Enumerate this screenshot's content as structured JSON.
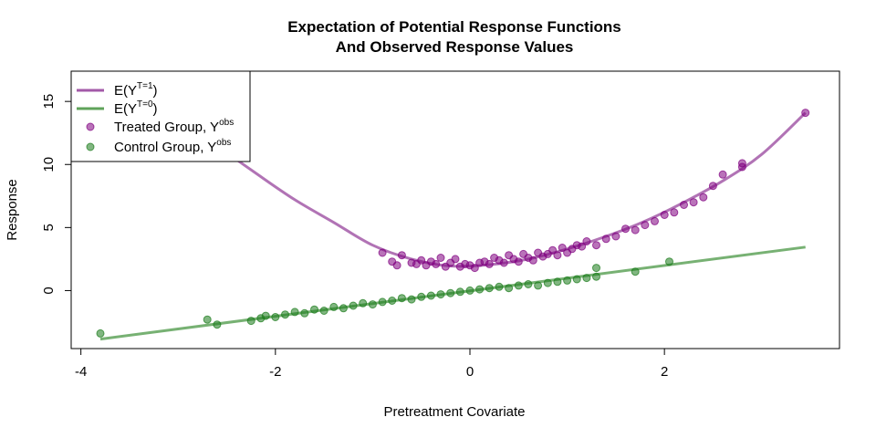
{
  "chart_data": {
    "type": "scatter",
    "title_line1": "Expectation of Potential Response Functions",
    "title_line2": "And Observed Response Values",
    "xlabel": "Pretreatment Covariate",
    "ylabel": "Response",
    "xlim": [
      -4.1,
      3.8
    ],
    "ylim": [
      -4.6,
      17.4
    ],
    "x_ticks": [
      -4,
      -2,
      0,
      2
    ],
    "y_ticks": [
      0,
      5,
      10,
      15
    ],
    "grid": false,
    "legend_position": "top-left",
    "legend": [
      {
        "type": "line",
        "label_base": "E(Y",
        "label_sup": "T=1",
        "label_end": ")",
        "color": "#a35aa8"
      },
      {
        "type": "line",
        "label_base": "E(Y",
        "label_sup": "T=0",
        "label_end": ")",
        "color": "#5fa35a"
      },
      {
        "type": "point",
        "label_base": "Treated Group, Y",
        "label_sup": "obs",
        "label_end": "",
        "color": "#800080"
      },
      {
        "type": "point",
        "label_base": "Control Group, Y",
        "label_sup": "obs",
        "label_end": "",
        "color": "#1a7a1a"
      }
    ],
    "curves": [
      {
        "name": "E(Y^T=1)",
        "color": "#a35aa8",
        "x_range": [
          -3.8,
          3.45
        ],
        "x": [
          -3.8,
          -3.4,
          -3.0,
          -2.6,
          -2.2,
          -1.8,
          -1.4,
          -1.0,
          -0.6,
          -0.2,
          0.2,
          0.6,
          1.0,
          1.4,
          1.8,
          2.2,
          2.6,
          3.0,
          3.45
        ],
        "y": [
          18.6,
          16.2,
          13.8,
          11.5,
          9.3,
          7.2,
          5.4,
          3.6,
          2.5,
          1.95,
          2.05,
          2.5,
          3.3,
          4.3,
          5.5,
          7.0,
          8.7,
          10.8,
          14.1
        ]
      },
      {
        "name": "E(Y^T=0)",
        "color": "#5fa35a",
        "x_range": [
          -3.8,
          3.45
        ],
        "x": [
          -3.8,
          3.45
        ],
        "y": [
          -3.85,
          3.45
        ]
      }
    ],
    "series": [
      {
        "name": "Treated Group, Y^obs",
        "color": "#800080",
        "x": [
          -0.9,
          -0.8,
          -0.75,
          -0.7,
          -0.6,
          -0.55,
          -0.5,
          -0.45,
          -0.4,
          -0.35,
          -0.3,
          -0.25,
          -0.2,
          -0.15,
          -0.1,
          -0.05,
          0.0,
          0.05,
          0.1,
          0.15,
          0.2,
          0.25,
          0.3,
          0.35,
          0.4,
          0.45,
          0.5,
          0.55,
          0.6,
          0.65,
          0.7,
          0.75,
          0.8,
          0.85,
          0.9,
          0.95,
          1.0,
          1.05,
          1.1,
          1.15,
          1.2,
          1.3,
          1.4,
          1.5,
          1.6,
          1.7,
          1.8,
          1.9,
          2.0,
          2.1,
          2.2,
          2.3,
          2.4,
          2.5,
          2.6,
          2.8,
          2.8,
          3.45
        ],
        "y": [
          3.0,
          2.3,
          2.0,
          2.8,
          2.2,
          2.1,
          2.4,
          2.0,
          2.3,
          2.1,
          2.6,
          1.9,
          2.2,
          2.5,
          1.9,
          2.1,
          2.0,
          1.8,
          2.2,
          2.3,
          2.1,
          2.6,
          2.4,
          2.2,
          2.8,
          2.5,
          2.3,
          2.9,
          2.6,
          2.4,
          3.0,
          2.7,
          2.9,
          3.2,
          2.8,
          3.4,
          3.0,
          3.3,
          3.6,
          3.5,
          3.9,
          3.6,
          4.1,
          4.3,
          4.9,
          4.8,
          5.2,
          5.5,
          6.0,
          6.2,
          6.8,
          7.0,
          7.4,
          8.3,
          9.2,
          9.8,
          10.1,
          14.1
        ]
      },
      {
        "name": "Control Group, Y^obs",
        "color": "#1a7a1a",
        "x": [
          -3.8,
          -2.7,
          -2.6,
          -2.25,
          -2.15,
          -2.1,
          -2.0,
          -1.9,
          -1.8,
          -1.7,
          -1.6,
          -1.5,
          -1.4,
          -1.3,
          -1.2,
          -1.1,
          -1.0,
          -0.9,
          -0.8,
          -0.7,
          -0.6,
          -0.5,
          -0.4,
          -0.3,
          -0.2,
          -0.1,
          0.0,
          0.1,
          0.2,
          0.3,
          0.4,
          0.5,
          0.6,
          0.7,
          0.8,
          0.9,
          1.0,
          1.1,
          1.2,
          1.3,
          1.3,
          1.7,
          2.05
        ],
        "y": [
          -3.4,
          -2.3,
          -2.7,
          -2.4,
          -2.2,
          -2.0,
          -2.1,
          -1.9,
          -1.7,
          -1.8,
          -1.5,
          -1.6,
          -1.3,
          -1.4,
          -1.2,
          -1.0,
          -1.1,
          -0.9,
          -0.8,
          -0.6,
          -0.7,
          -0.5,
          -0.4,
          -0.3,
          -0.2,
          -0.1,
          0.0,
          0.1,
          0.2,
          0.3,
          0.2,
          0.4,
          0.5,
          0.4,
          0.6,
          0.7,
          0.8,
          0.9,
          1.0,
          1.1,
          1.8,
          1.5,
          2.3
        ]
      }
    ]
  }
}
